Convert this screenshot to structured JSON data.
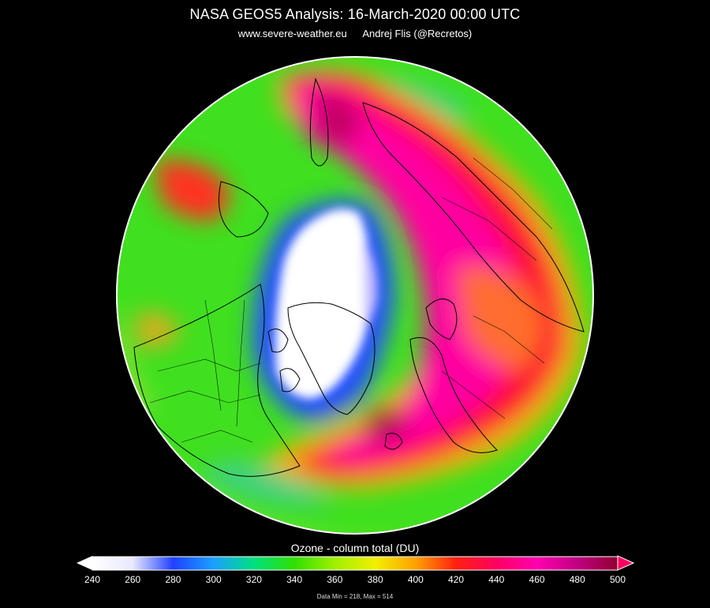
{
  "map": {
    "title": "NASA GEOS5  Analysis: 16-March-2020  00:00 UTC",
    "source_url": "www.severe-weather.eu",
    "author": "Andrej Flis (@Recretos)",
    "projection": "polar-stereographic",
    "variable": "ozone column total",
    "colors": {
      "background": "#000000",
      "coastline": "#000000",
      "rim": "#ffffff"
    }
  },
  "colorbar": {
    "title": "Ozone - column total (DU)",
    "min_value": 240,
    "max_value": 500,
    "ticks": [
      "240",
      "260",
      "280",
      "300",
      "320",
      "340",
      "360",
      "380",
      "400",
      "420",
      "440",
      "460",
      "480",
      "500"
    ],
    "stops": [
      {
        "value": 240,
        "color": "#ffffff"
      },
      {
        "value": 260,
        "color": "#e8e8ff"
      },
      {
        "value": 280,
        "color": "#2040ff"
      },
      {
        "value": 300,
        "color": "#1aa0ff"
      },
      {
        "value": 320,
        "color": "#00e080"
      },
      {
        "value": 340,
        "color": "#30e000"
      },
      {
        "value": 360,
        "color": "#a0f000"
      },
      {
        "value": 380,
        "color": "#f0f000"
      },
      {
        "value": 400,
        "color": "#ffa000"
      },
      {
        "value": 420,
        "color": "#ff2010"
      },
      {
        "value": 440,
        "color": "#ff0060"
      },
      {
        "value": 460,
        "color": "#ff00b0"
      },
      {
        "value": 480,
        "color": "#c00080"
      },
      {
        "value": 500,
        "color": "#900030"
      }
    ],
    "under_color": "#ffffff",
    "over_color": "#ff0060"
  },
  "stats": {
    "text": "Data Min = 218, Max = 514",
    "data_min": 218,
    "data_max": 514
  }
}
